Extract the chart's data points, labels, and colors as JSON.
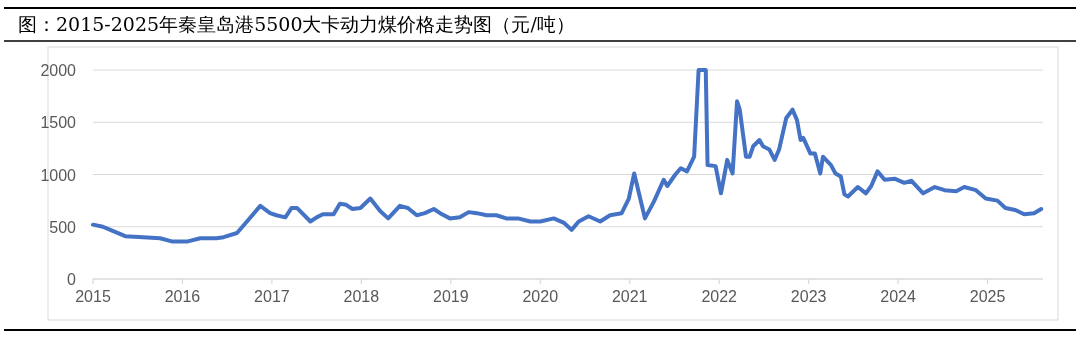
{
  "chart_data": {
    "type": "line",
    "title": "图：2015-2025年秦皇岛港5500大卡动力煤价格走势图（元/吨）",
    "x": [
      2015.0,
      2015.11,
      2015.22,
      2015.36,
      2015.56,
      2015.75,
      2015.88,
      2016.06,
      2016.2,
      2016.38,
      2016.46,
      2016.61,
      2016.74,
      2016.87,
      2016.98,
      2017.05,
      2017.15,
      2017.22,
      2017.28,
      2017.43,
      2017.5,
      2017.57,
      2017.69,
      2017.76,
      2017.83,
      2017.9,
      2017.99,
      2018.1,
      2018.21,
      2018.3,
      2018.43,
      2018.52,
      2018.62,
      2018.71,
      2018.81,
      2018.88,
      2018.99,
      2019.1,
      2019.2,
      2019.29,
      2019.4,
      2019.51,
      2019.62,
      2019.75,
      2019.89,
      2020.0,
      2020.15,
      2020.26,
      2020.35,
      2020.43,
      2020.54,
      2020.67,
      2020.78,
      2020.91,
      2020.99,
      2021.05,
      2021.12,
      2021.17,
      2021.27,
      2021.38,
      2021.42,
      2021.51,
      2021.57,
      2021.64,
      2021.72,
      2021.77,
      2021.85,
      2021.87,
      2021.96,
      2022.02,
      2022.09,
      2022.15,
      2022.2,
      2022.23,
      2022.3,
      2022.34,
      2022.38,
      2022.45,
      2022.49,
      2022.56,
      2022.62,
      2022.67,
      2022.75,
      2022.82,
      2022.87,
      2022.91,
      2022.94,
      2023.02,
      2023.07,
      2023.13,
      2023.16,
      2023.25,
      2023.3,
      2023.36,
      2023.4,
      2023.44,
      2023.55,
      2023.64,
      2023.7,
      2023.77,
      2023.85,
      2023.96,
      2024.07,
      2024.15,
      2024.28,
      2024.41,
      2024.52,
      2024.65,
      2024.74,
      2024.87,
      2024.98,
      2025.11,
      2025.2,
      2025.31,
      2025.41,
      2025.52,
      2025.6
    ],
    "series": [
      {
        "color": "#4472c4",
        "values": [
          520,
          500,
          460,
          410,
          400,
          390,
          360,
          360,
          390,
          390,
          400,
          440,
          570,
          700,
          630,
          610,
          590,
          680,
          680,
          550,
          590,
          620,
          620,
          720,
          710,
          670,
          680,
          770,
          650,
          580,
          700,
          680,
          610,
          630,
          670,
          630,
          580,
          590,
          640,
          630,
          610,
          610,
          580,
          580,
          550,
          550,
          580,
          540,
          470,
          550,
          600,
          550,
          610,
          630,
          770,
          1010,
          760,
          580,
          740,
          950,
          890,
          1000,
          1060,
          1030,
          1170,
          2000,
          2000,
          1090,
          1080,
          820,
          1140,
          1010,
          1700,
          1620,
          1170,
          1170,
          1270,
          1330,
          1270,
          1240,
          1140,
          1240,
          1540,
          1620,
          1520,
          1330,
          1350,
          1200,
          1200,
          1010,
          1170,
          1090,
          1010,
          980,
          810,
          790,
          880,
          820,
          890,
          1030,
          950,
          960,
          920,
          940,
          820,
          880,
          850,
          840,
          880,
          850,
          770,
          750,
          680,
          660,
          620,
          630,
          670
        ]
      }
    ],
    "xlim": [
      2015,
      2025.62
    ],
    "xticks": [
      2015,
      2016,
      2017,
      2018,
      2019,
      2020,
      2021,
      2022,
      2023,
      2024,
      2025
    ],
    "ylim": [
      0,
      2000
    ],
    "yticks": [
      0,
      500,
      1000,
      1500,
      2000
    ],
    "grid": "y",
    "line_style": "solid",
    "marker": "none"
  }
}
